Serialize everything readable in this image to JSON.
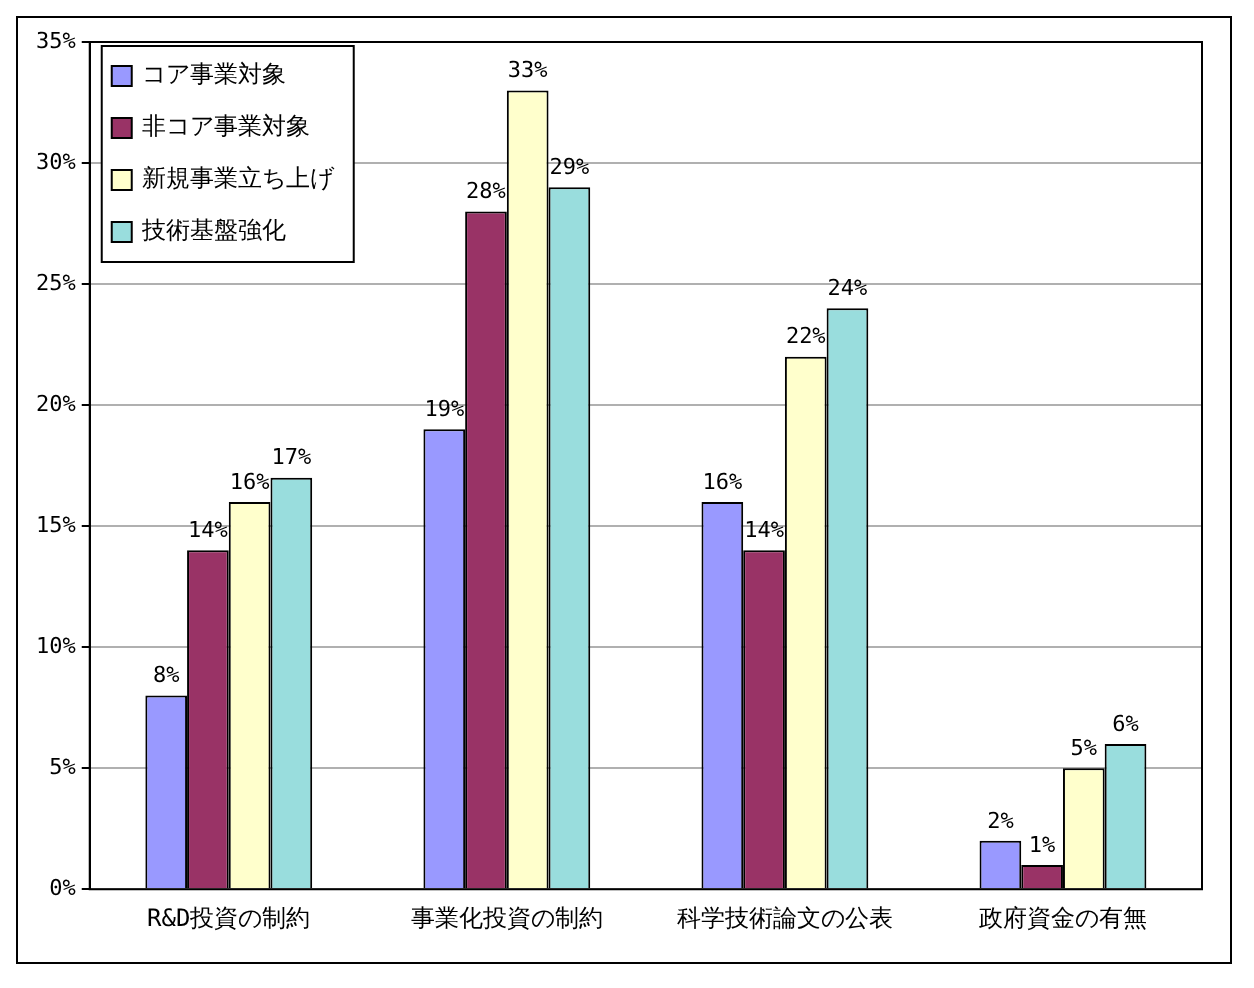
{
  "chart_data": {
    "type": "bar",
    "categories": [
      "R&D投資の制約",
      "事業化投資の制約",
      "科学技術論文の公表",
      "政府資金の有無"
    ],
    "series": [
      {
        "name": "コア事業対象",
        "color": "#9999ff",
        "values": [
          8,
          19,
          16,
          2
        ],
        "value_labels": [
          "8%",
          "19%",
          "16%",
          "2%"
        ]
      },
      {
        "name": "非コア事業対象",
        "color": "#993366",
        "values": [
          14,
          28,
          14,
          1
        ],
        "value_labels": [
          "14%",
          "28%",
          "14%",
          "1%"
        ]
      },
      {
        "name": "新規事業立ち上げ",
        "color": "#ffffcc",
        "values": [
          16,
          33,
          22,
          5
        ],
        "value_labels": [
          "16%",
          "33%",
          "22%",
          "5%"
        ]
      },
      {
        "name": "技術基盤強化",
        "color": "#99dddd",
        "values": [
          17,
          29,
          24,
          6
        ],
        "value_labels": [
          "17%",
          "29%",
          "24%",
          "6%"
        ]
      }
    ],
    "ylim": [
      0,
      35
    ],
    "yticks": [
      {
        "value": 0,
        "label": "0%"
      },
      {
        "value": 5,
        "label": "5%"
      },
      {
        "value": 10,
        "label": "10%"
      },
      {
        "value": 15,
        "label": "15%"
      },
      {
        "value": 20,
        "label": "20%"
      },
      {
        "value": 25,
        "label": "25%"
      },
      {
        "value": 30,
        "label": "30%"
      },
      {
        "value": 35,
        "label": "35%"
      }
    ],
    "grid": "y",
    "legend": "top left"
  }
}
